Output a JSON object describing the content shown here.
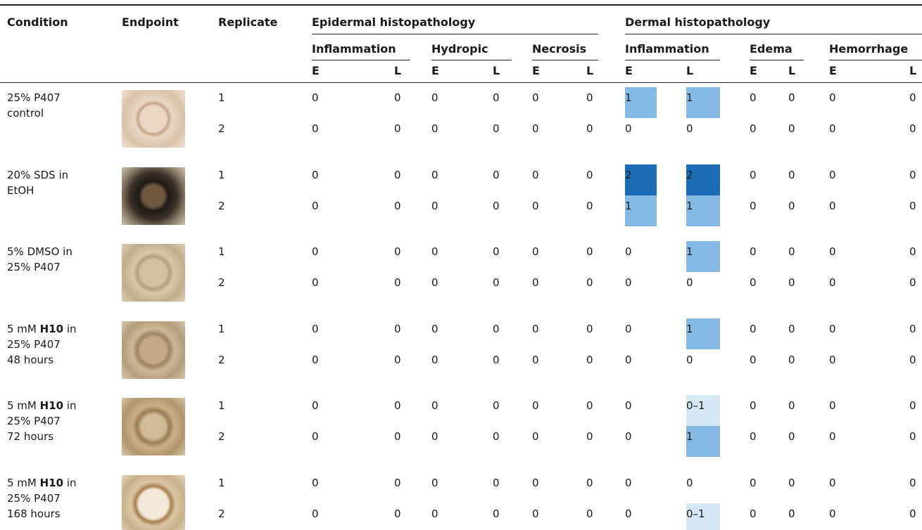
{
  "header": {
    "columns": [
      "Condition",
      "Endpoint",
      "Replicate"
    ],
    "groups": [
      {
        "title": "Epidermal histopathology",
        "subgroups": [
          {
            "title": "Inflammation",
            "cols": [
              "E",
              "L"
            ]
          },
          {
            "title": "Hydropic",
            "cols": [
              "E",
              "L"
            ]
          },
          {
            "title": "Necrosis",
            "cols": [
              "E",
              "L"
            ]
          }
        ]
      },
      {
        "title": "Dermal histopathology",
        "subgroups": [
          {
            "title": "Inflammation",
            "cols": [
              "E",
              "L"
            ]
          },
          {
            "title": "Edema",
            "cols": [
              "E",
              "L"
            ]
          },
          {
            "title": "Hemorrhage",
            "cols": [
              "E",
              "L"
            ]
          }
        ]
      }
    ]
  },
  "highlight": {
    "1": "#83b9e3",
    "2": "#1c6db6",
    "0–1": "#d5e8f4"
  },
  "rows": [
    {
      "condition": [
        [
          {
            "text": "25% P407"
          }
        ],
        [
          {
            "text": "control"
          }
        ]
      ],
      "replicates": [
        {
          "replicate": 1,
          "values": [
            0,
            0,
            0,
            0,
            0,
            0,
            1,
            1,
            0,
            0,
            0,
            0
          ]
        },
        {
          "replicate": 2,
          "values": [
            0,
            0,
            0,
            0,
            0,
            0,
            0,
            0,
            0,
            0,
            0,
            0
          ]
        }
      ]
    },
    {
      "condition": [
        [
          {
            "text": "20% SDS in"
          }
        ],
        [
          {
            "text": "EtOH"
          }
        ]
      ],
      "replicates": [
        {
          "replicate": 1,
          "values": [
            0,
            0,
            0,
            0,
            0,
            0,
            2,
            2,
            0,
            0,
            0,
            0
          ]
        },
        {
          "replicate": 2,
          "values": [
            0,
            0,
            0,
            0,
            0,
            0,
            1,
            1,
            0,
            0,
            0,
            0
          ]
        }
      ]
    },
    {
      "condition": [
        [
          {
            "text": "5% DMSO in"
          }
        ],
        [
          {
            "text": "25% P407"
          }
        ]
      ],
      "replicates": [
        {
          "replicate": 1,
          "values": [
            0,
            0,
            0,
            0,
            0,
            0,
            0,
            1,
            0,
            0,
            0,
            0
          ]
        },
        {
          "replicate": 2,
          "values": [
            0,
            0,
            0,
            0,
            0,
            0,
            0,
            0,
            0,
            0,
            0,
            0
          ]
        }
      ]
    },
    {
      "condition": [
        [
          {
            "text": "5 mM "
          },
          {
            "text": "H10",
            "bold": true
          },
          {
            "text": " in"
          }
        ],
        [
          {
            "text": "25% P407"
          }
        ],
        [
          {
            "text": "48 hours"
          }
        ]
      ],
      "replicates": [
        {
          "replicate": 1,
          "values": [
            0,
            0,
            0,
            0,
            0,
            0,
            0,
            1,
            0,
            0,
            0,
            0
          ]
        },
        {
          "replicate": 2,
          "values": [
            0,
            0,
            0,
            0,
            0,
            0,
            0,
            0,
            0,
            0,
            0,
            0
          ]
        }
      ]
    },
    {
      "condition": [
        [
          {
            "text": "5 mM "
          },
          {
            "text": "H10",
            "bold": true
          },
          {
            "text": " in"
          }
        ],
        [
          {
            "text": "25% P407"
          }
        ],
        [
          {
            "text": "72 hours"
          }
        ]
      ],
      "replicates": [
        {
          "replicate": 1,
          "values": [
            0,
            0,
            0,
            0,
            0,
            0,
            0,
            "0–1",
            0,
            0,
            0,
            0
          ]
        },
        {
          "replicate": 2,
          "values": [
            0,
            0,
            0,
            0,
            0,
            0,
            0,
            1,
            0,
            0,
            0,
            0
          ]
        }
      ]
    },
    {
      "condition": [
        [
          {
            "text": "5 mM "
          },
          {
            "text": "H10",
            "bold": true
          },
          {
            "text": " in"
          }
        ],
        [
          {
            "text": "25% P407"
          }
        ],
        [
          {
            "text": "168 hours"
          }
        ]
      ],
      "replicates": [
        {
          "replicate": 1,
          "values": [
            0,
            0,
            0,
            0,
            0,
            0,
            0,
            0,
            0,
            0,
            0,
            0
          ]
        },
        {
          "replicate": 2,
          "values": [
            0,
            0,
            0,
            0,
            0,
            0,
            0,
            "0–1",
            0,
            0,
            0,
            0
          ]
        }
      ]
    }
  ]
}
